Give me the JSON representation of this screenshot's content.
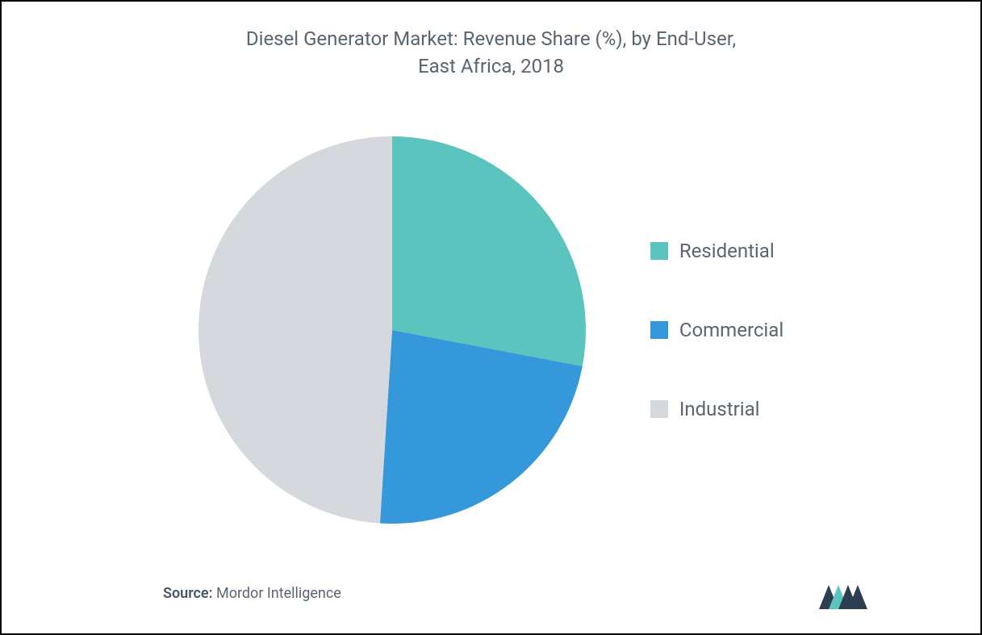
{
  "chart": {
    "type": "pie",
    "title_line1": "Diesel Generator Market: Revenue Share (%), by End-User,",
    "title_line2": "East Africa, 2018",
    "title_color": "#5a6570",
    "title_fontsize": 24,
    "background_color": "#ffffff",
    "border_color": "#000000",
    "border_width": 2,
    "slices": [
      {
        "label": "Residential",
        "value": 28,
        "color": "#5bc4be"
      },
      {
        "label": "Commercial",
        "value": 23,
        "color": "#3498db"
      },
      {
        "label": "Industrial",
        "value": 49,
        "color": "#d5d8dc"
      }
    ],
    "pie_radius": 240,
    "pie_start_angle": -90,
    "legend_fontsize": 24,
    "legend_color": "#5a6570",
    "legend_swatch_size": 22
  },
  "footer": {
    "source_label": "Source:",
    "source_value": "Mordor Intelligence",
    "source_fontsize": 18,
    "source_color": "#5a6570",
    "logo_colors": {
      "primary": "#2c3e50",
      "accent": "#5bc4be"
    }
  }
}
